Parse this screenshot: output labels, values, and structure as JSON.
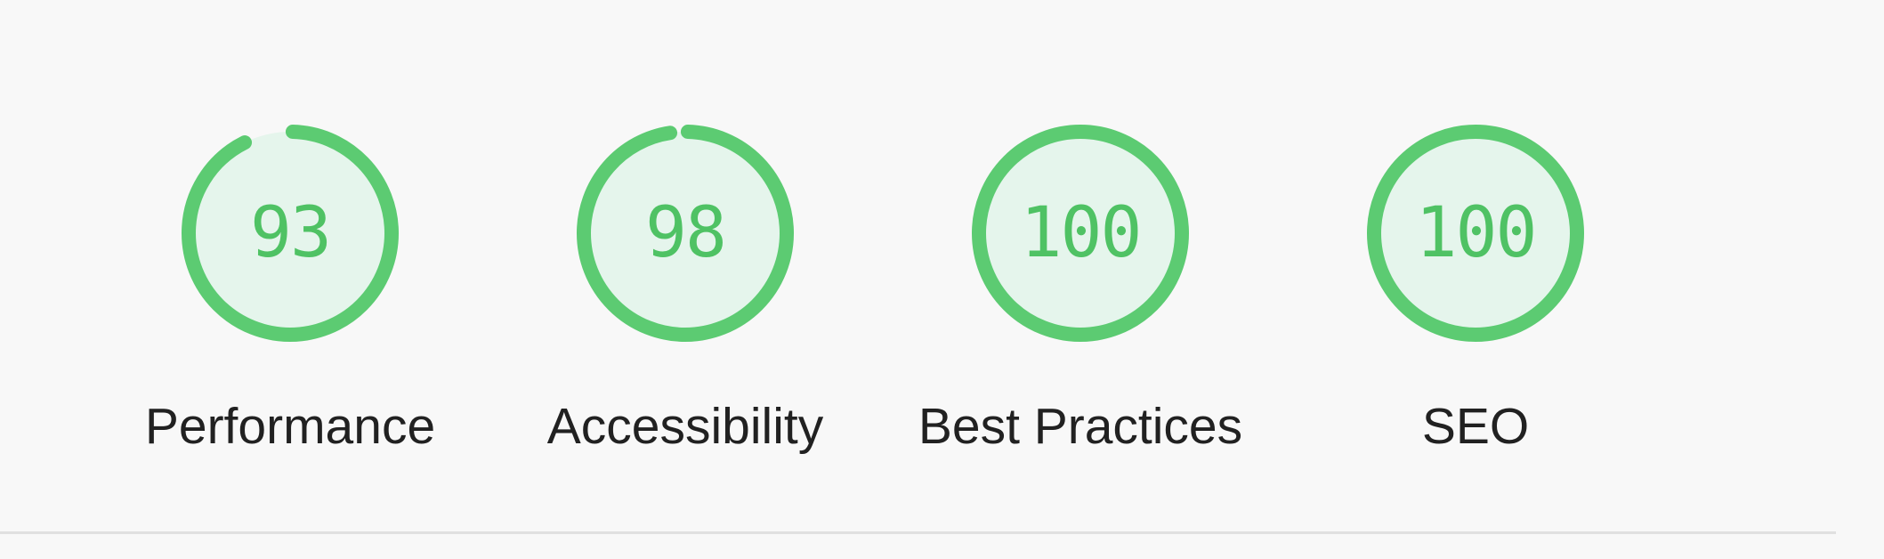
{
  "categories": [
    {
      "key": "performance",
      "label": "Performance",
      "score": 93,
      "display": "93"
    },
    {
      "key": "accessibility",
      "label": "Accessibility",
      "score": 98,
      "display": "98"
    },
    {
      "key": "best-practices",
      "label": "Best Practices",
      "score": 100,
      "display": "100"
    },
    {
      "key": "seo",
      "label": "SEO",
      "score": 100,
      "display": "100"
    }
  ],
  "colors": {
    "pass": "#5ccb72",
    "pass_bg": "#e5f5ec",
    "label_text": "#212121",
    "page_bg": "#f8f8f8",
    "divider": "#e0e0e0"
  }
}
